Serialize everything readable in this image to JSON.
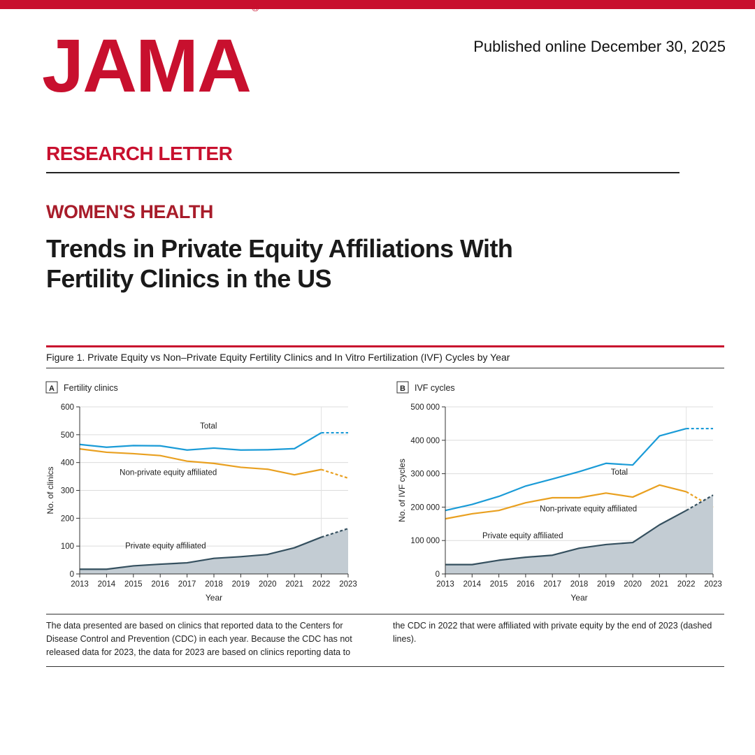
{
  "header": {
    "logo_text": "JAMA",
    "logo_mark": "®",
    "published": "Published online December 30, 2025",
    "brand_color": "#c8102e"
  },
  "article": {
    "section": "RESEARCH LETTER",
    "subject": "WOMEN'S HEALTH",
    "title": "Trends in Private Equity Affiliations With Fertility Clinics in the US"
  },
  "figure": {
    "caption": "Figure 1. Private Equity vs Non–Private Equity Fertility Clinics and In Vitro Fertilization (IVF) Cycles by Year",
    "footnote_left": "The data presented are based on clinics that reported data to the Centers for Disease Control and Prevention (CDC) in each year. Because the CDC has not released data for 2023, the data for 2023 are based on clinics reporting data to",
    "footnote_right": "the CDC in 2022 that were affiliated with private equity by the end of 2023 (dashed lines)."
  },
  "chart_data": [
    {
      "type": "line",
      "panel_letter": "A",
      "title": "Fertility clinics",
      "xlabel": "Year",
      "ylabel": "No. of clinics",
      "x": [
        2013,
        2014,
        2015,
        2016,
        2017,
        2018,
        2019,
        2020,
        2021,
        2022,
        2023
      ],
      "ylim": [
        0,
        600
      ],
      "yticks": [
        0,
        100,
        200,
        300,
        400,
        500,
        600
      ],
      "ytick_labels": [
        "0",
        "100",
        "200",
        "300",
        "400",
        "500",
        "600"
      ],
      "dashed_from": 2022,
      "series": [
        {
          "name": "Total",
          "color": "#1a9bd7",
          "style": "line",
          "values": [
            465,
            455,
            461,
            460,
            445,
            452,
            445,
            446,
            450,
            507,
            507
          ]
        },
        {
          "name": "Non-private equity affiliated",
          "color": "#e9a020",
          "style": "line",
          "values": [
            449,
            437,
            432,
            425,
            405,
            397,
            383,
            376,
            356,
            375,
            344
          ]
        },
        {
          "name": "Private equity affiliated",
          "color": "#35505f",
          "fill": "#c3ccd3",
          "style": "area",
          "values": [
            17,
            17,
            29,
            35,
            40,
            56,
            62,
            70,
            94,
            132,
            163
          ]
        }
      ],
      "grid": true
    },
    {
      "type": "line",
      "panel_letter": "B",
      "title": "IVF cycles",
      "xlabel": "Year",
      "ylabel": "No. of IVF cycles",
      "x": [
        2013,
        2014,
        2015,
        2016,
        2017,
        2018,
        2019,
        2020,
        2021,
        2022,
        2023
      ],
      "ylim": [
        0,
        500000
      ],
      "yticks": [
        0,
        100000,
        200000,
        300000,
        400000,
        500000
      ],
      "ytick_labels": [
        "0",
        "100 000",
        "200 000",
        "300 000",
        "400 000",
        "500 000"
      ],
      "dashed_from": 2022,
      "series": [
        {
          "name": "Total",
          "color": "#1a9bd7",
          "style": "line",
          "values": [
            190000,
            208000,
            232000,
            263000,
            284000,
            306000,
            331000,
            326000,
            413000,
            435000,
            435000
          ]
        },
        {
          "name": "Non-private equity affiliated",
          "color": "#e9a020",
          "style": "line",
          "values": [
            165000,
            180000,
            190000,
            213000,
            228000,
            228000,
            242000,
            230000,
            266000,
            246000,
            199000
          ]
        },
        {
          "name": "Private equity affiliated",
          "color": "#35505f",
          "fill": "#c3ccd3",
          "style": "area",
          "values": [
            28000,
            28000,
            41000,
            50000,
            56000,
            77000,
            88000,
            94000,
            147000,
            190000,
            236000
          ]
        }
      ],
      "grid": true
    }
  ]
}
